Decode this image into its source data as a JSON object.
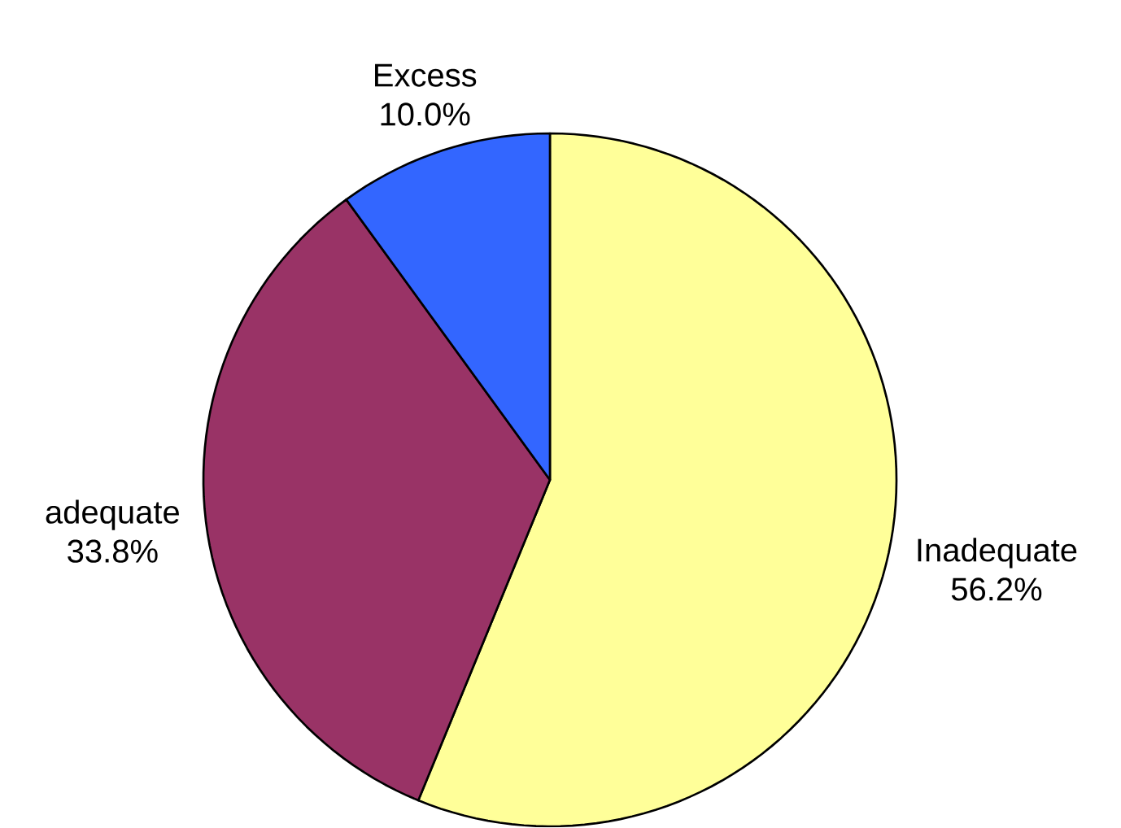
{
  "chart_data": {
    "type": "pie",
    "categories": [
      "Inadequate",
      "adequate",
      "Excess"
    ],
    "values": [
      56.2,
      33.8,
      10.0
    ],
    "colors": [
      "#ffff99",
      "#993366",
      "#3366ff"
    ],
    "value_labels": [
      "56.2%",
      "33.8%",
      "10.0%"
    ]
  }
}
